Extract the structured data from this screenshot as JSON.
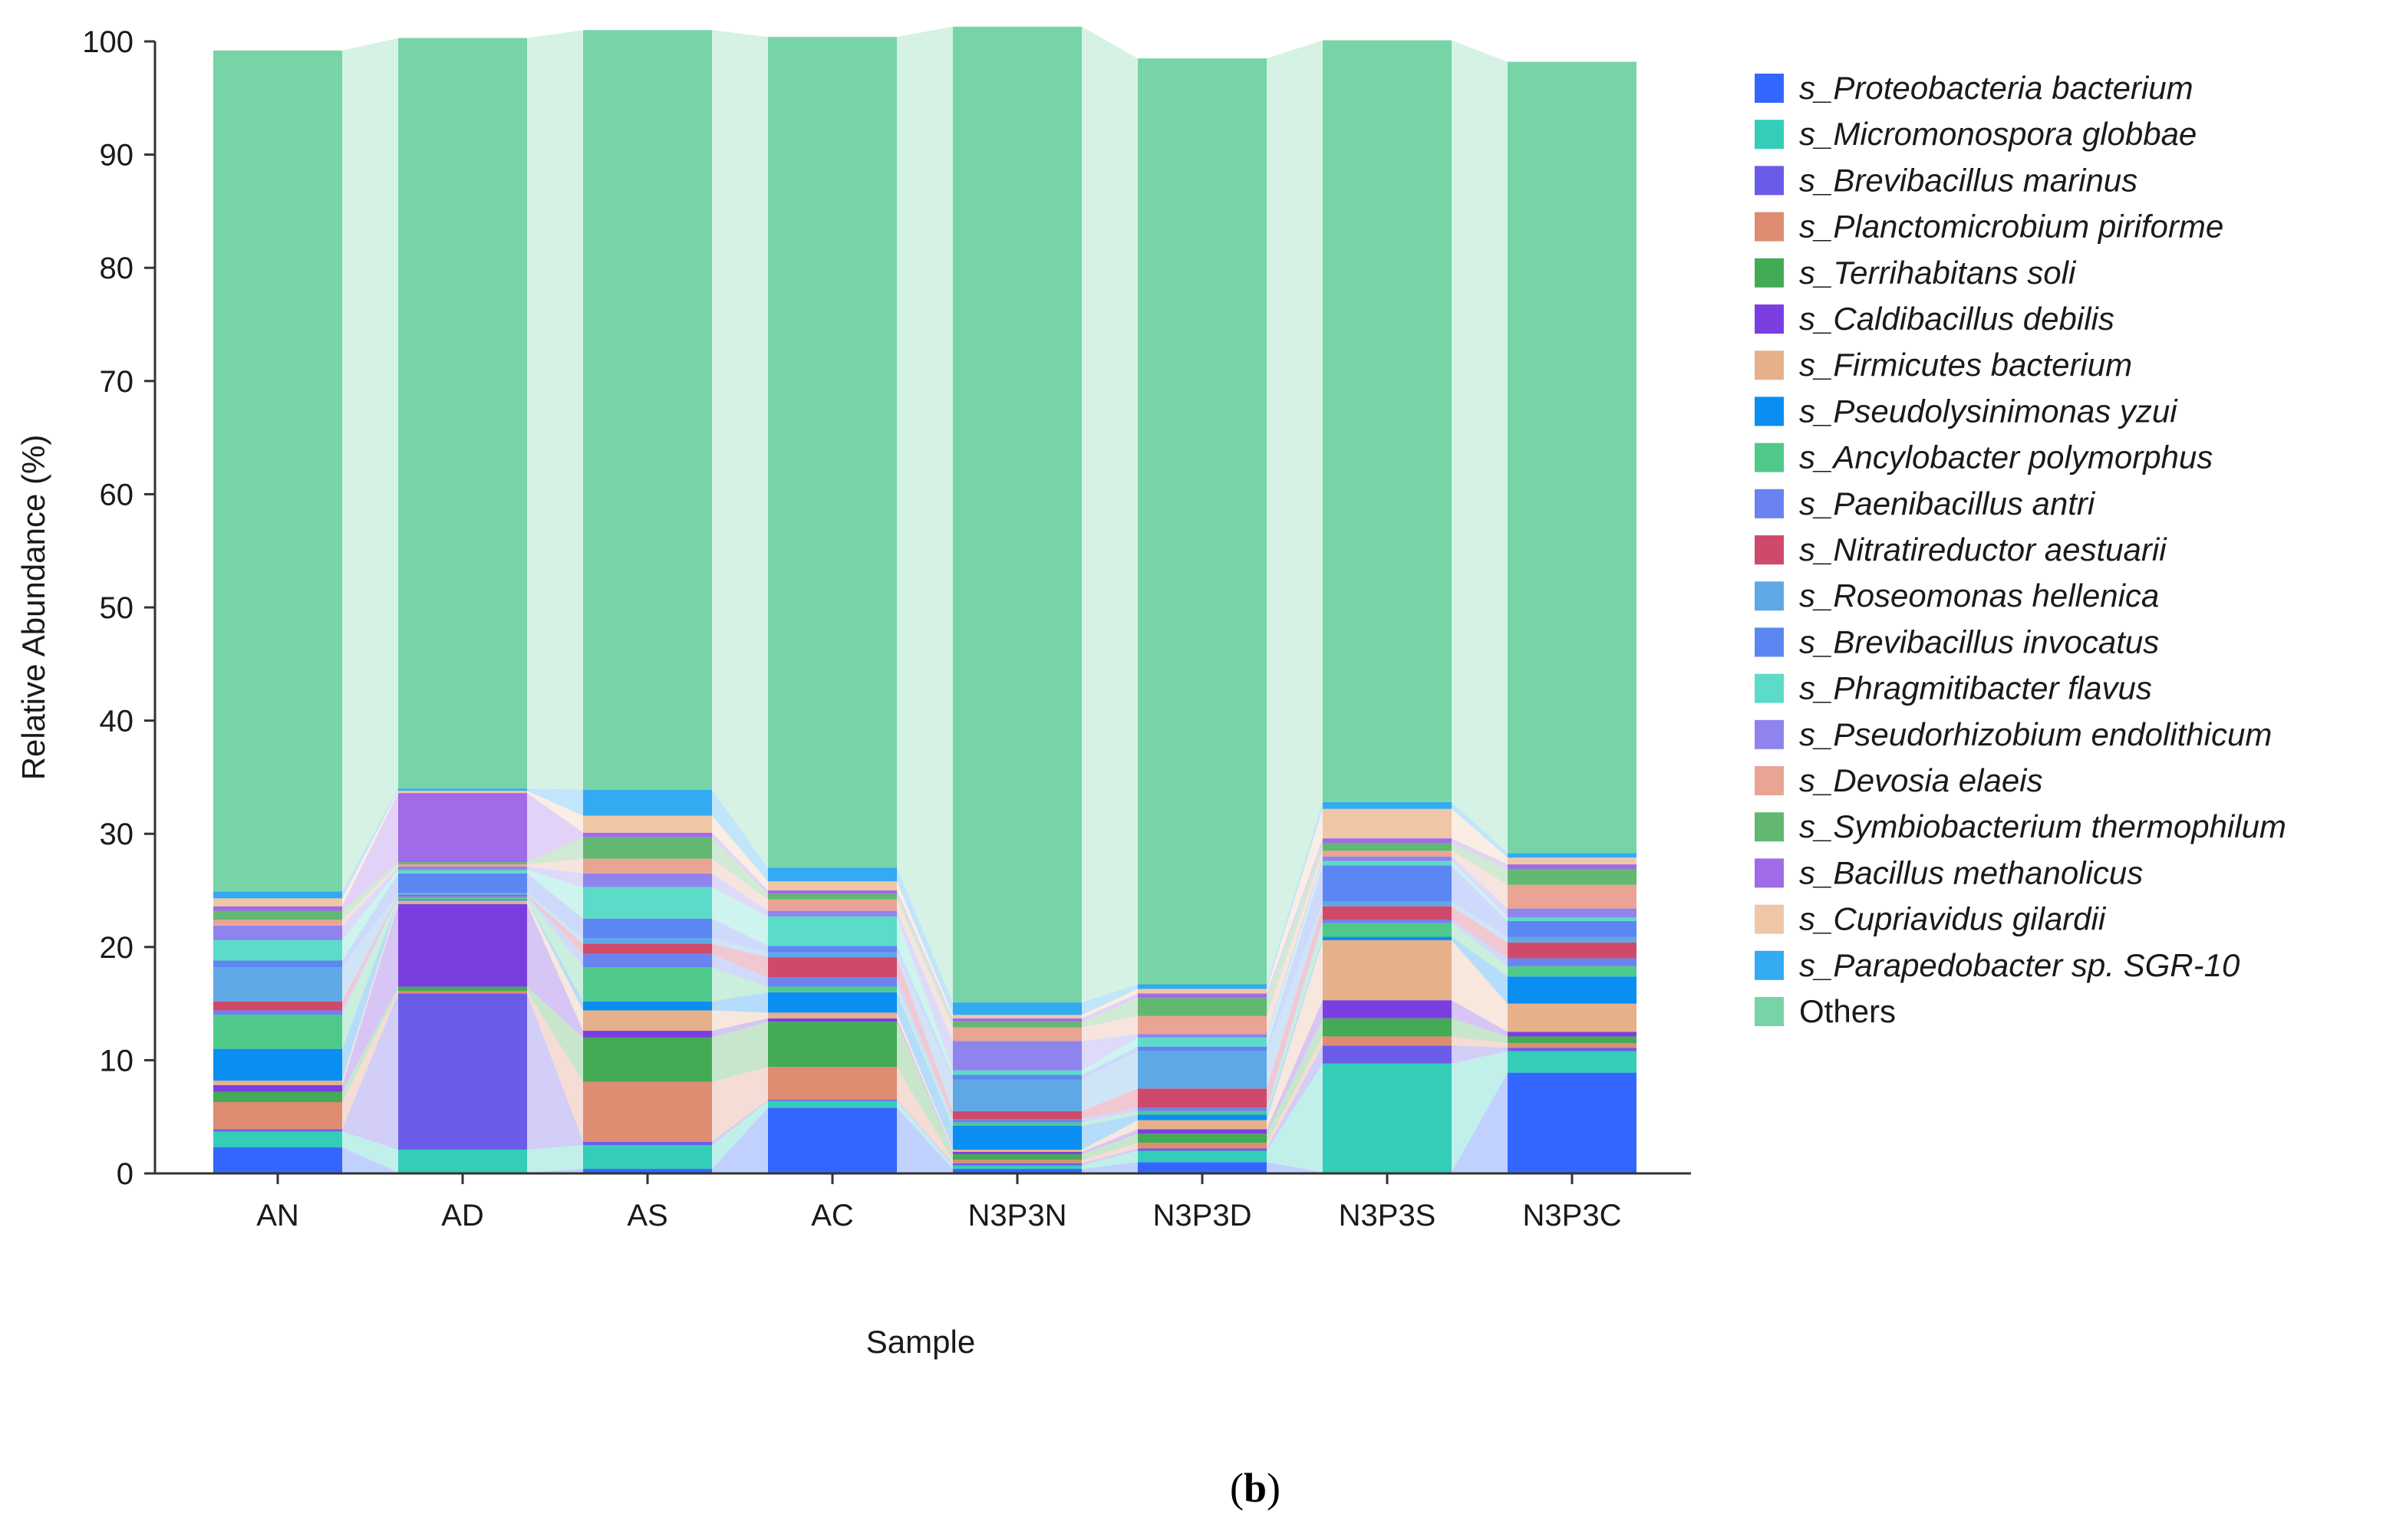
{
  "chart_data": {
    "type": "bar",
    "stacked": true,
    "title": "",
    "xlabel": "Sample",
    "ylabel": "Relative Abundance (%)",
    "ylim": [
      0,
      100
    ],
    "yticks": [
      0,
      10,
      20,
      30,
      40,
      50,
      60,
      70,
      80,
      90,
      100
    ],
    "categories": [
      "AN",
      "AD",
      "AS",
      "AC",
      "N3P3N",
      "N3P3D",
      "N3P3S",
      "N3P3C"
    ],
    "legend_position": "right",
    "series": [
      {
        "name": "s_Proteobacteria bacterium",
        "color": "#3366ff",
        "values": [
          2.3,
          0.1,
          0.4,
          5.8,
          0.4,
          1.0,
          0.1,
          8.9
        ]
      },
      {
        "name": "s_Micromonospora globbae",
        "color": "#33cdb8",
        "values": [
          1.4,
          2.0,
          2.1,
          0.6,
          0.3,
          1.0,
          9.6,
          1.9
        ]
      },
      {
        "name": "s_Brevibacillus marinus",
        "color": "#6b5ce8",
        "values": [
          0.2,
          13.8,
          0.3,
          0.1,
          0.2,
          0.2,
          1.6,
          0.3
        ]
      },
      {
        "name": "s_Planctomicrobium piriforme",
        "color": "#de8c72",
        "values": [
          2.4,
          0.2,
          5.3,
          2.9,
          0.3,
          0.5,
          0.8,
          0.4
        ]
      },
      {
        "name": "s_Terrihabitans soli",
        "color": "#44ab55",
        "values": [
          0.9,
          0.4,
          3.9,
          4.0,
          0.5,
          0.8,
          1.6,
          0.6
        ]
      },
      {
        "name": "s_Caldibacillus debilis",
        "color": "#7a3ee0",
        "values": [
          0.6,
          7.3,
          0.6,
          0.3,
          0.2,
          0.4,
          1.6,
          0.4
        ]
      },
      {
        "name": "s_Firmicutes bacterium",
        "color": "#e6b08a",
        "values": [
          0.4,
          0.3,
          1.8,
          0.5,
          0.2,
          0.8,
          5.3,
          2.5
        ]
      },
      {
        "name": "s_Pseudolysinimonas yzui",
        "color": "#0a8ef2",
        "values": [
          2.8,
          0.1,
          0.8,
          1.8,
          2.1,
          0.5,
          0.3,
          2.4
        ]
      },
      {
        "name": "s_Ancylobacter polymorphus",
        "color": "#4fc98a",
        "values": [
          3.0,
          0.2,
          3.0,
          0.5,
          0.3,
          0.3,
          1.2,
          0.9
        ]
      },
      {
        "name": "s_Paenibacillus antri",
        "color": "#6a83f0",
        "values": [
          0.4,
          0.1,
          1.2,
          0.8,
          0.3,
          0.3,
          0.3,
          0.7
        ]
      },
      {
        "name": "s_Nitratireductor aestuarii",
        "color": "#cf4a6a",
        "values": [
          0.8,
          0.1,
          0.9,
          1.8,
          0.7,
          1.7,
          1.2,
          1.4
        ]
      },
      {
        "name": "s_Roseomonas hellenica",
        "color": "#5fa8e6",
        "values": [
          3.0,
          0.2,
          0.5,
          0.4,
          2.8,
          3.3,
          0.4,
          0.5
        ]
      },
      {
        "name": "s_Brevibacillus invocatus",
        "color": "#5c86f2",
        "values": [
          0.6,
          1.7,
          1.7,
          0.6,
          0.4,
          0.4,
          3.2,
          1.4
        ]
      },
      {
        "name": "s_Phragmitibacter flavus",
        "color": "#5bdbc8",
        "values": [
          1.8,
          0.3,
          2.8,
          2.6,
          0.4,
          0.8,
          0.4,
          0.3
        ]
      },
      {
        "name": "s_Pseudorhizobium endolithicum",
        "color": "#8f84ee",
        "values": [
          1.3,
          0.3,
          1.2,
          0.5,
          2.6,
          0.3,
          0.4,
          0.8
        ]
      },
      {
        "name": "s_Devosia elaeis",
        "color": "#e9a494",
        "values": [
          0.5,
          0.2,
          1.3,
          1.0,
          1.2,
          1.6,
          0.5,
          2.1
        ]
      },
      {
        "name": "s_Symbiobacterium thermophilum",
        "color": "#62b870",
        "values": [
          0.8,
          0.2,
          1.9,
          0.5,
          0.5,
          1.6,
          0.7,
          1.4
        ]
      },
      {
        "name": "s_Bacillus methanolicus",
        "color": "#a06ae8",
        "values": [
          0.4,
          6.1,
          0.4,
          0.3,
          0.3,
          0.4,
          0.4,
          0.4
        ]
      },
      {
        "name": "s_Cupriavidus gilardii",
        "color": "#efc7a7",
        "values": [
          0.7,
          0.2,
          1.5,
          0.8,
          0.3,
          0.4,
          2.6,
          0.6
        ]
      },
      {
        "name": "s_Parapedobacter sp. SGR-10",
        "color": "#33aaf2",
        "values": [
          0.6,
          0.2,
          2.3,
          1.2,
          1.1,
          0.4,
          0.6,
          0.4
        ]
      },
      {
        "name": "Others",
        "color": "#77d4a6",
        "values": [
          74.3,
          66.3,
          67.1,
          73.4,
          86.2,
          81.8,
          67.3,
          69.9
        ]
      }
    ]
  },
  "panel_label": {
    "open": "(",
    "letter": "b",
    "close": ")"
  }
}
